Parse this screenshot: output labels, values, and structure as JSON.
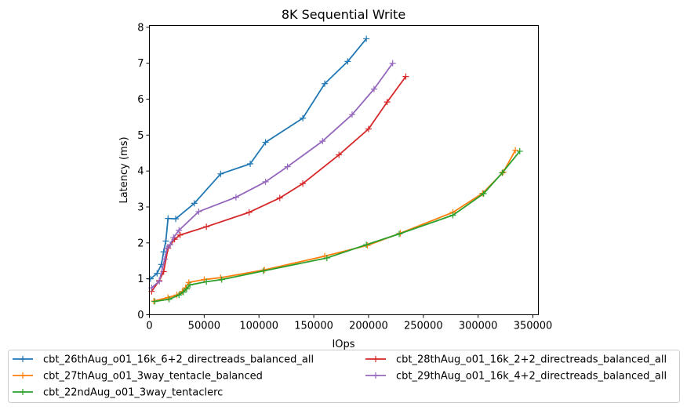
{
  "chart_data": {
    "type": "line",
    "title": "8K  Sequential Write",
    "xlabel": "IOps",
    "ylabel": "Latency (ms)",
    "xlim": [
      0,
      355000
    ],
    "ylim": [
      0,
      8.05
    ],
    "xticks": [
      0,
      50000,
      100000,
      150000,
      200000,
      250000,
      300000,
      350000
    ],
    "xtick_labels": [
      "0",
      "50000",
      "100000",
      "150000",
      "200000",
      "250000",
      "300000",
      "350000"
    ],
    "yticks": [
      0,
      1,
      2,
      3,
      4,
      5,
      6,
      7,
      8
    ],
    "ytick_labels": [
      "0",
      "1",
      "2",
      "3",
      "4",
      "5",
      "6",
      "7",
      "8"
    ],
    "grid": false,
    "legend_position": "below-plot",
    "marker": "+",
    "series": [
      {
        "name": "cbt_26thAug_o01_16k_6+2_directreads_balanced_all",
        "color": "#1f77b4",
        "x": [
          1000,
          7000,
          11000,
          13000,
          15000,
          17000,
          24000,
          41000,
          65000,
          92000,
          106000,
          140000,
          160000,
          181000,
          198000
        ],
        "y": [
          1.0,
          1.15,
          1.4,
          1.75,
          2.05,
          2.68,
          2.67,
          3.1,
          3.92,
          4.2,
          4.8,
          5.47,
          6.43,
          7.05,
          7.68
        ]
      },
      {
        "name": "cbt_27thAug_o01_3way_tentacle_balanced",
        "color": "#ff7f0e",
        "x": [
          4000,
          17000,
          25000,
          30000,
          33000,
          36000,
          50000,
          65000,
          105000,
          160000,
          199000,
          229000,
          277000,
          304000,
          323000,
          334000
        ],
        "y": [
          0.38,
          0.48,
          0.55,
          0.65,
          0.75,
          0.9,
          0.98,
          1.03,
          1.25,
          1.63,
          1.93,
          2.27,
          2.85,
          3.38,
          3.97,
          4.58
        ]
      },
      {
        "name": "cbt_22ndAug_o01_3way_tentaclerc",
        "color": "#2ca02c",
        "x": [
          5000,
          18000,
          27000,
          31000,
          34000,
          37000,
          52000,
          66000,
          104000,
          162000,
          198000,
          228000,
          277000,
          305000,
          322000,
          338000
        ],
        "y": [
          0.37,
          0.43,
          0.55,
          0.63,
          0.72,
          0.83,
          0.92,
          0.98,
          1.22,
          1.58,
          1.95,
          2.25,
          2.77,
          3.37,
          3.95,
          4.55
        ]
      },
      {
        "name": "cbt_28thAug_o01_16k_2+2_directreads_balanced_all",
        "color": "#d62728",
        "x": [
          2000,
          9000,
          13000,
          17000,
          23000,
          28000,
          52000,
          91000,
          119000,
          140000,
          173000,
          200000,
          217000,
          234000
        ],
        "y": [
          0.65,
          0.95,
          1.2,
          1.85,
          2.1,
          2.22,
          2.45,
          2.85,
          3.25,
          3.65,
          4.45,
          5.17,
          5.92,
          6.63
        ]
      },
      {
        "name": "cbt_29thAug_o01_16k_4+2_directreads_balanced_all",
        "color": "#9467bd",
        "x": [
          2000,
          9000,
          14000,
          16000,
          19000,
          22000,
          27000,
          45000,
          79000,
          106000,
          126000,
          158000,
          185000,
          205000,
          222000
        ],
        "y": [
          0.75,
          0.93,
          1.55,
          1.85,
          1.95,
          2.15,
          2.35,
          2.87,
          3.27,
          3.7,
          4.12,
          4.83,
          5.57,
          6.28,
          7.0
        ]
      }
    ]
  }
}
